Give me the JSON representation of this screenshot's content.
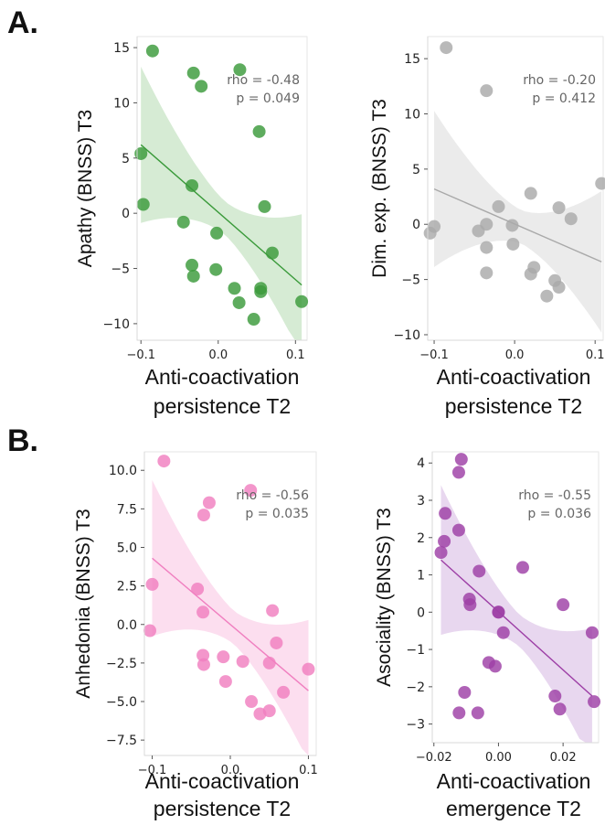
{
  "panel_labels": [
    "A.",
    "B."
  ],
  "chart_data": [
    {
      "type": "scatter",
      "panel": "A.",
      "color": "#3a9a3a",
      "band_color": "#cfe8cc",
      "title": "",
      "xlabel": [
        "Anti-coactivation",
        "persistence T2"
      ],
      "ylabel": "Apathy (BNSS) T3",
      "xlim": [
        -0.105,
        0.115
      ],
      "ylim": [
        -11.5,
        16
      ],
      "xticks": [
        -0.1,
        0.0,
        0.1
      ],
      "xtick_labels": [
        "−0.1",
        "0.0",
        "0.1"
      ],
      "yticks": [
        -10,
        -5,
        0,
        5,
        10,
        15
      ],
      "ytick_labels": [
        "−10",
        "−5",
        "0",
        "5",
        "10",
        "15"
      ],
      "annotation": [
        "rho = -0.48",
        "p = 0.049"
      ],
      "points": [
        [
          -0.085,
          14.7
        ],
        [
          -0.097,
          0.8
        ],
        [
          -0.1,
          5.4
        ],
        [
          -0.032,
          12.7
        ],
        [
          -0.022,
          11.5
        ],
        [
          0.028,
          13.0
        ],
        [
          -0.045,
          -0.8
        ],
        [
          -0.034,
          2.5
        ],
        [
          -0.034,
          -4.7
        ],
        [
          -0.032,
          -5.7
        ],
        [
          -0.003,
          -5.1
        ],
        [
          -0.002,
          -1.8
        ],
        [
          0.021,
          -6.8
        ],
        [
          0.027,
          -8.1
        ],
        [
          0.046,
          -9.6
        ],
        [
          0.053,
          7.4
        ],
        [
          0.055,
          -6.8
        ],
        [
          0.055,
          -7.1
        ],
        [
          0.06,
          0.6
        ],
        [
          0.07,
          -3.6
        ],
        [
          0.108,
          -8.0
        ]
      ],
      "fit": {
        "x": [
          -0.1,
          0.108
        ],
        "y": [
          6.2,
          -6.5
        ]
      }
    },
    {
      "type": "scatter",
      "panel": "A.",
      "color": "#a9a9a9",
      "band_color": "#e8e8e8",
      "title": "",
      "xlabel": [
        "Anti-coactivation",
        "persistence T2"
      ],
      "ylabel": "Dim. exp. (BNSS) T3",
      "xlim": [
        -0.108,
        0.11
      ],
      "ylim": [
        -10.5,
        17
      ],
      "xticks": [
        -0.1,
        0.0,
        0.1
      ],
      "xtick_labels": [
        "−0.1",
        "0.0",
        "0.1"
      ],
      "yticks": [
        -10,
        -5,
        0,
        5,
        10,
        15
      ],
      "ytick_labels": [
        "−10",
        "−5",
        "0",
        "5",
        "10",
        "15"
      ],
      "annotation": [
        "rho = -0.20",
        "p = 0.412"
      ],
      "points": [
        [
          -0.085,
          16.0
        ],
        [
          -0.035,
          12.1
        ],
        [
          -0.105,
          -0.8
        ],
        [
          -0.1,
          -0.2
        ],
        [
          -0.045,
          -0.6
        ],
        [
          -0.035,
          0.0
        ],
        [
          -0.035,
          -2.1
        ],
        [
          -0.035,
          -4.4
        ],
        [
          -0.02,
          1.6
        ],
        [
          -0.003,
          -0.1
        ],
        [
          -0.002,
          -1.8
        ],
        [
          0.02,
          2.8
        ],
        [
          0.024,
          -3.9
        ],
        [
          0.02,
          -4.5
        ],
        [
          0.04,
          -6.5
        ],
        [
          0.055,
          1.5
        ],
        [
          0.05,
          -5.1
        ],
        [
          0.055,
          -5.7
        ],
        [
          0.07,
          0.5
        ],
        [
          0.108,
          3.7
        ]
      ],
      "fit": {
        "x": [
          -0.1,
          0.108
        ],
        "y": [
          3.2,
          -3.4
        ]
      }
    },
    {
      "type": "scatter",
      "panel": "B.",
      "color": "#f07fc0",
      "band_color": "#fbd8ec",
      "title": "",
      "xlabel": [
        "Anti-coactivation",
        "persistence T2"
      ],
      "ylabel": "Anhedonia (BNSS) T3",
      "xlim": [
        -0.11,
        0.11
      ],
      "ylim": [
        -8.5,
        11.2
      ],
      "xticks": [
        -0.1,
        0.0,
        0.1
      ],
      "xtick_labels": [
        "−0.1",
        "0.0",
        "0.1"
      ],
      "yticks": [
        -7.5,
        -5.0,
        -2.5,
        0.0,
        2.5,
        5.0,
        7.5,
        10.0
      ],
      "ytick_labels": [
        "−7.5",
        "−5.0",
        "−2.5",
        "0.0",
        "2.5",
        "5.0",
        "7.5",
        "10.0"
      ],
      "annotation": [
        "rho = -0.56",
        "p = 0.035"
      ],
      "points": [
        [
          -0.085,
          10.6
        ],
        [
          -0.027,
          7.9
        ],
        [
          -0.034,
          7.1
        ],
        [
          0.026,
          8.7
        ],
        [
          -0.1,
          2.6
        ],
        [
          -0.103,
          -0.4
        ],
        [
          -0.042,
          2.3
        ],
        [
          -0.035,
          0.8
        ],
        [
          -0.035,
          -2.0
        ],
        [
          -0.034,
          -2.6
        ],
        [
          -0.009,
          -2.1
        ],
        [
          -0.006,
          -3.7
        ],
        [
          0.016,
          -2.4
        ],
        [
          0.027,
          -5.0
        ],
        [
          0.038,
          -5.8
        ],
        [
          0.05,
          -5.6
        ],
        [
          0.054,
          0.9
        ],
        [
          0.059,
          -1.2
        ],
        [
          0.05,
          -2.5
        ],
        [
          0.068,
          -4.4
        ],
        [
          0.1,
          -2.9
        ]
      ],
      "fit": {
        "x": [
          -0.1,
          0.1
        ],
        "y": [
          4.3,
          -4.3
        ]
      }
    },
    {
      "type": "scatter",
      "panel": "B.",
      "color": "#9d3fa6",
      "band_color": "#e4d0ec",
      "title": "",
      "xlabel": [
        "Anti-coactivation",
        "emergence T2"
      ],
      "ylabel": "Asociality (BNSS) T3",
      "xlim": [
        -0.0205,
        0.031
      ],
      "ylim": [
        -3.5,
        4.3
      ],
      "xticks": [
        -0.02,
        0.0,
        0.02
      ],
      "xtick_labels": [
        "−0.02",
        "0.00",
        "0.02"
      ],
      "yticks": [
        -3,
        -2,
        -1,
        0,
        1,
        2,
        3,
        4
      ],
      "ytick_labels": [
        "−3",
        "−2",
        "−1",
        "0",
        "1",
        "2",
        "3",
        "4"
      ],
      "annotation": [
        "rho = -0.55",
        "p = 0.036"
      ],
      "points": [
        [
          -0.0115,
          4.1
        ],
        [
          -0.0123,
          3.75
        ],
        [
          -0.0165,
          2.65
        ],
        [
          -0.0123,
          2.2
        ],
        [
          -0.0168,
          1.9
        ],
        [
          -0.0178,
          1.6
        ],
        [
          -0.006,
          1.1
        ],
        [
          0.0075,
          1.2
        ],
        [
          -0.009,
          0.35
        ],
        [
          -0.0088,
          0.2
        ],
        [
          0.0015,
          -0.55
        ],
        [
          -0.003,
          -1.35
        ],
        [
          0.02,
          0.2
        ],
        [
          0.029,
          -0.55
        ],
        [
          0.0,
          0.0
        ],
        [
          0.0,
          0.0
        ],
        [
          -0.0105,
          -2.15
        ],
        [
          -0.0122,
          -2.7
        ],
        [
          -0.0064,
          -2.7
        ],
        [
          0.0175,
          -2.25
        ],
        [
          0.019,
          -2.6
        ],
        [
          0.0296,
          -2.4
        ],
        [
          -0.001,
          -1.45
        ]
      ],
      "fit": {
        "x": [
          -0.0178,
          0.029
        ],
        "y": [
          1.4,
          -2.25
        ]
      }
    }
  ]
}
